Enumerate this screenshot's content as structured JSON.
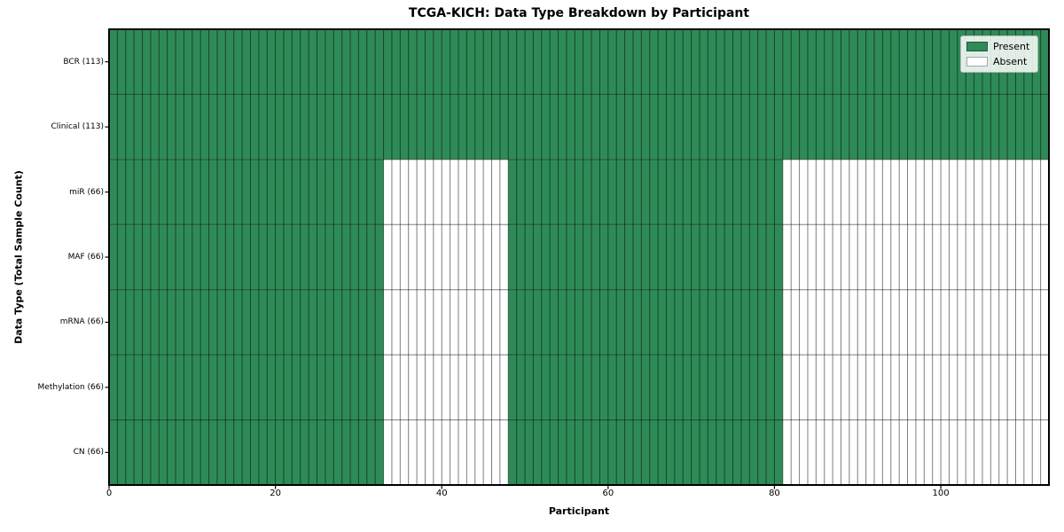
{
  "chart_data": {
    "type": "heatmap",
    "title": "TCGA-KICH: Data Type Breakdown by Participant",
    "xlabel": "Participant",
    "ylabel": "Data Type (Total Sample Count)",
    "n_participants": 113,
    "x_range": [
      0,
      113
    ],
    "x_ticks": [
      0,
      20,
      40,
      60,
      80,
      100
    ],
    "grid": true,
    "rows": [
      {
        "label": "BCR (113)",
        "data_type": "BCR",
        "present_count": 113,
        "absent_count": 0,
        "present_ranges": [
          [
            0,
            113
          ]
        ]
      },
      {
        "label": "Clinical (113)",
        "data_type": "Clinical",
        "present_count": 113,
        "absent_count": 0,
        "present_ranges": [
          [
            0,
            113
          ]
        ]
      },
      {
        "label": "miR (66)",
        "data_type": "miR",
        "present_count": 66,
        "absent_count": 47,
        "present_ranges": [
          [
            0,
            33
          ],
          [
            48,
            81
          ]
        ]
      },
      {
        "label": "MAF (66)",
        "data_type": "MAF",
        "present_count": 66,
        "absent_count": 47,
        "present_ranges": [
          [
            0,
            33
          ],
          [
            48,
            81
          ]
        ]
      },
      {
        "label": "mRNA (66)",
        "data_type": "mRNA",
        "present_count": 66,
        "absent_count": 47,
        "present_ranges": [
          [
            0,
            33
          ],
          [
            48,
            81
          ]
        ]
      },
      {
        "label": "Methylation (66)",
        "data_type": "Methylation",
        "present_count": 66,
        "absent_count": 47,
        "present_ranges": [
          [
            0,
            33
          ],
          [
            48,
            81
          ]
        ]
      },
      {
        "label": "CN (66)",
        "data_type": "CN",
        "present_count": 66,
        "absent_count": 47,
        "present_ranges": [
          [
            0,
            33
          ],
          [
            48,
            81
          ]
        ]
      }
    ],
    "legend": {
      "position": "upper right",
      "entries": [
        {
          "label": "Present",
          "color": "#2e8b57"
        },
        {
          "label": "Absent",
          "color": "#ffffff"
        }
      ]
    },
    "colors": {
      "present": "#2e8b57",
      "absent": "#ffffff",
      "cell_edge": "rgba(0,0,0,0.5)",
      "frame": "#000000"
    }
  }
}
